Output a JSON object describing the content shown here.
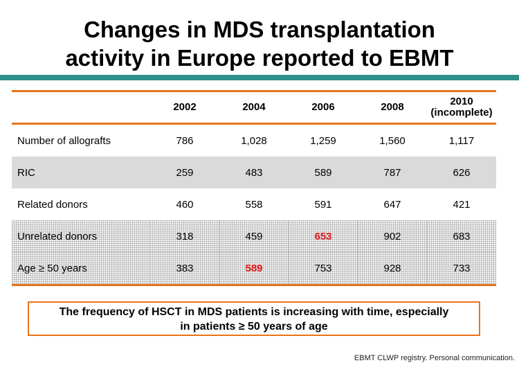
{
  "title": {
    "line1": "Changes in MDS transplantation",
    "line2": "activity in Europe reported to EBMT"
  },
  "table": {
    "columns": [
      {
        "label": "2002"
      },
      {
        "label": "2004"
      },
      {
        "label": "2006"
      },
      {
        "label": "2008"
      },
      {
        "label": "2010",
        "sub": "(incomplete)"
      }
    ],
    "rows": [
      {
        "label": "Number of allografts",
        "cells": [
          "786",
          "1,028",
          "1,259",
          "1,560",
          "1,117"
        ],
        "highlight": null
      },
      {
        "label": "RIC",
        "cells": [
          "259",
          "483",
          "589",
          "787",
          "626"
        ],
        "highlight": null
      },
      {
        "label": "Related donors",
        "cells": [
          "460",
          "558",
          "591",
          "647",
          "421"
        ],
        "highlight": null
      },
      {
        "label": "Unrelated donors",
        "cells": [
          "318",
          "459",
          "653",
          "902",
          "683"
        ],
        "highlight": 2
      },
      {
        "label": "Age ≥ 50 years",
        "cells": [
          "383",
          "589",
          "753",
          "928",
          "733"
        ],
        "highlight": 1
      }
    ],
    "highlight_color": "#e01818",
    "border_color": "#e8731a"
  },
  "callout": {
    "line1": "The frequency of HSCT in MDS patients is increasing with time, especially",
    "line2": "in patients ≥ 50 years of age"
  },
  "source": "EBMT CLWP registry. Personal communication.",
  "colors": {
    "teal_bar": "#2f8f8a",
    "accent_orange": "#e8731a"
  }
}
